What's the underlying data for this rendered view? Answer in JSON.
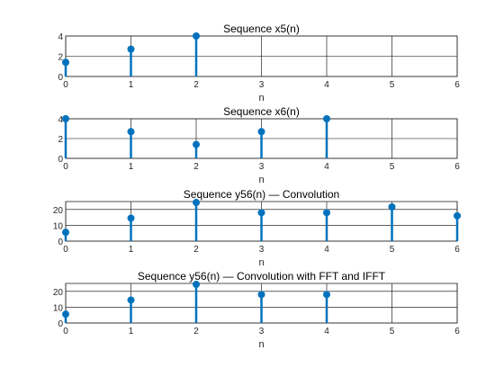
{
  "figure": {
    "background": "#ffffff",
    "stem_color": "#0072BD",
    "grid_color": "#000000"
  },
  "chart_data": [
    {
      "type": "stem",
      "title": "Sequence x5(n)",
      "xlabel": "n",
      "ylabel": "",
      "xlim": [
        0,
        6
      ],
      "ylim": [
        0,
        4
      ],
      "xticks": [
        0,
        1,
        2,
        3,
        4,
        5,
        6
      ],
      "yticks": [
        0,
        2,
        4
      ],
      "grid": true,
      "x": [
        0,
        1,
        2
      ],
      "values": [
        1.4,
        2.7,
        4
      ]
    },
    {
      "type": "stem",
      "title": "Sequence x6(n)",
      "xlabel": "n",
      "ylabel": "",
      "xlim": [
        0,
        6
      ],
      "ylim": [
        0,
        4
      ],
      "xticks": [
        0,
        1,
        2,
        3,
        4,
        5,
        6
      ],
      "yticks": [
        0,
        2,
        4
      ],
      "grid": true,
      "x": [
        0,
        1,
        2,
        3,
        4
      ],
      "values": [
        4,
        2.7,
        1.4,
        2.7,
        4
      ]
    },
    {
      "type": "stem",
      "title": "Sequence y56(n) — Convolution",
      "xlabel": "n",
      "ylabel": "",
      "xlim": [
        0,
        6
      ],
      "ylim": [
        0,
        25
      ],
      "xticks": [
        0,
        1,
        2,
        3,
        4,
        5,
        6
      ],
      "yticks": [
        0,
        10,
        20
      ],
      "grid": true,
      "x": [
        0,
        1,
        2,
        3,
        4,
        5,
        6
      ],
      "values": [
        5.6,
        14.5,
        24.4,
        18,
        18,
        21.6,
        16
      ]
    },
    {
      "type": "stem",
      "title": "Sequence y56(n) — Convolution with FFT and IFFT",
      "xlabel": "n",
      "ylabel": "",
      "xlim": [
        0,
        6
      ],
      "ylim": [
        0,
        25
      ],
      "xticks": [
        0,
        1,
        2,
        3,
        4,
        5,
        6
      ],
      "yticks": [
        0,
        10,
        20
      ],
      "grid": true,
      "x": [
        0,
        1,
        2,
        3,
        4
      ],
      "values": [
        5.6,
        14.5,
        24.4,
        18,
        18
      ]
    }
  ]
}
